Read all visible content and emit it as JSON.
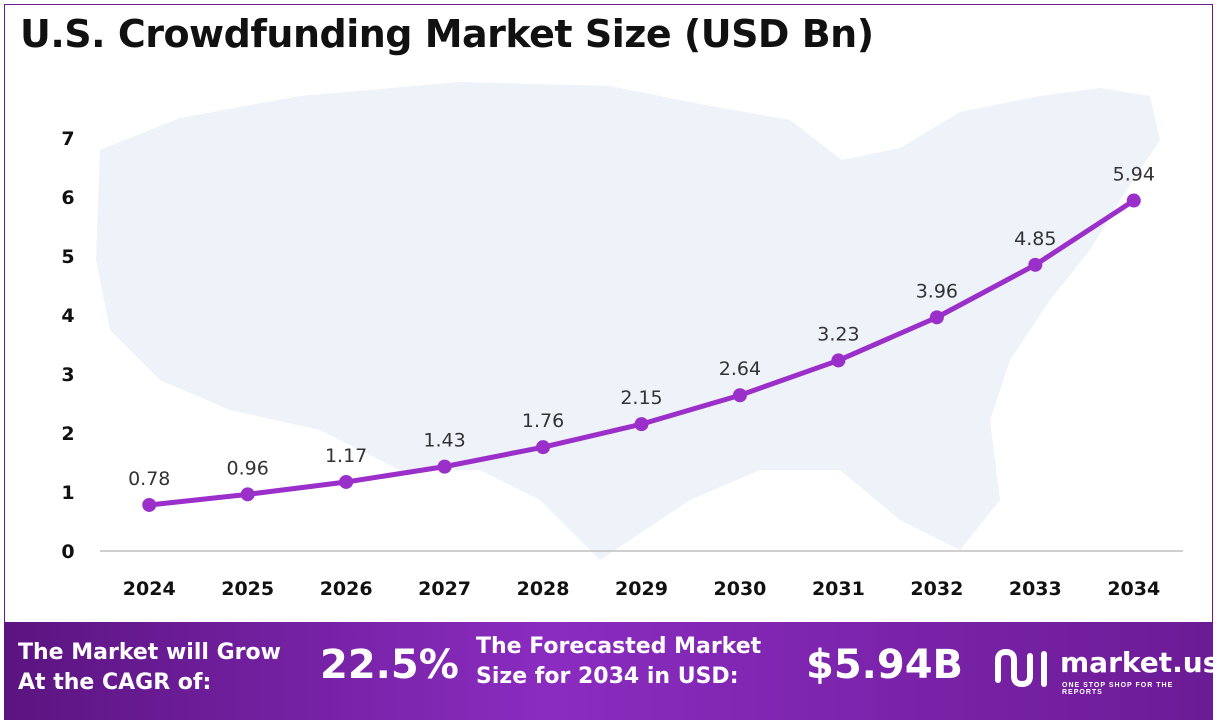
{
  "title": "U.S. Crowdfunding Market Size (USD Bn)",
  "colors": {
    "line": "#9b2fc9",
    "footer_start": "#5b1480",
    "footer_end": "#8a2cc0",
    "map": "#eef2f9",
    "axis": "#bfbfbf"
  },
  "chart_data": {
    "type": "line",
    "categories": [
      "2024",
      "2025",
      "2026",
      "2027",
      "2028",
      "2029",
      "2030",
      "2031",
      "2032",
      "2033",
      "2034"
    ],
    "values": [
      0.78,
      0.96,
      1.17,
      1.43,
      1.76,
      2.15,
      2.64,
      3.23,
      3.96,
      4.85,
      5.94
    ],
    "data_labels": [
      "0.78",
      "0.96",
      "1.17",
      "1.43",
      "1.76",
      "2.15",
      "2.64",
      "3.23",
      "3.96",
      "4.85",
      "5.94"
    ],
    "ylim": [
      0,
      7
    ],
    "yticks": [
      "0",
      "1",
      "2",
      "3",
      "4",
      "5",
      "6",
      "7"
    ],
    "title": "U.S. Crowdfunding Market Size (USD Bn)",
    "xlabel": "",
    "ylabel": "",
    "grid": false,
    "background": "US map silhouette"
  },
  "footer": {
    "cagr_label_line1": "The Market will Grow",
    "cagr_label_line2": "At the CAGR of:",
    "cagr_value": "22.5%",
    "forecast_label_line1": "The Forecasted Market",
    "forecast_label_line2": "Size for 2034 in USD:",
    "forecast_value": "$5.94B",
    "brand_name": "market.us",
    "brand_tagline": "ONE STOP SHOP FOR THE REPORTS"
  }
}
